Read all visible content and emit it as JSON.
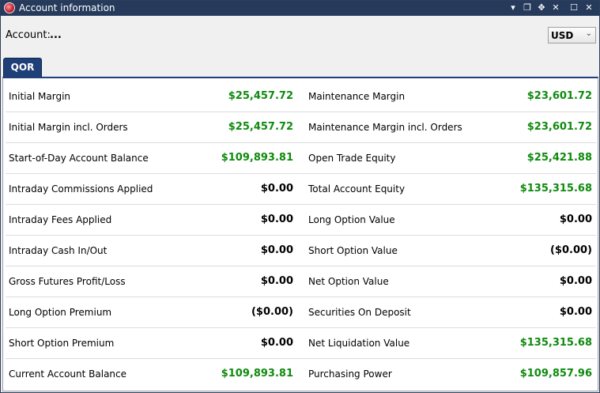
{
  "window": {
    "title": "Account information",
    "controls": [
      "▾",
      "❐",
      "✥",
      "✕",
      "☐",
      "✕"
    ]
  },
  "header": {
    "account_label": "Account:",
    "account_value": "...",
    "currency": "USD"
  },
  "tabs": [
    {
      "label": "QOR"
    }
  ],
  "colors": {
    "positive": "#0f8a0f",
    "neutral": "#000000",
    "tab_bg": "#1f3f78",
    "titlebar_bg": "#263a5b"
  },
  "rows": [
    {
      "left_label": "Initial Margin",
      "left_value": "$25,457.72",
      "left_tone": "pos",
      "right_label": "Maintenance Margin",
      "right_value": "$23,601.72",
      "right_tone": "pos"
    },
    {
      "left_label": "Initial Margin incl. Orders",
      "left_value": "$25,457.72",
      "left_tone": "pos",
      "right_label": "Maintenance Margin incl. Orders",
      "right_value": "$23,601.72",
      "right_tone": "pos"
    },
    {
      "left_label": "Start-of-Day Account Balance",
      "left_value": "$109,893.81",
      "left_tone": "pos",
      "right_label": "Open Trade Equity",
      "right_value": "$25,421.88",
      "right_tone": "pos"
    },
    {
      "left_label": "Intraday Commissions Applied",
      "left_value": "$0.00",
      "left_tone": "neutral",
      "right_label": "Total Account Equity",
      "right_value": "$135,315.68",
      "right_tone": "pos"
    },
    {
      "left_label": "Intraday Fees Applied",
      "left_value": "$0.00",
      "left_tone": "neutral",
      "right_label": "Long Option Value",
      "right_value": "$0.00",
      "right_tone": "neutral"
    },
    {
      "left_label": "Intraday Cash In/Out",
      "left_value": "$0.00",
      "left_tone": "neutral",
      "right_label": "Short Option Value",
      "right_value": "($0.00)",
      "right_tone": "neutral"
    },
    {
      "left_label": "Gross Futures Profit/Loss",
      "left_value": "$0.00",
      "left_tone": "neutral",
      "right_label": "Net Option Value",
      "right_value": "$0.00",
      "right_tone": "neutral"
    },
    {
      "left_label": "Long Option Premium",
      "left_value": "($0.00)",
      "left_tone": "neutral",
      "right_label": "Securities On Deposit",
      "right_value": "$0.00",
      "right_tone": "neutral"
    },
    {
      "left_label": "Short Option Premium",
      "left_value": "$0.00",
      "left_tone": "neutral",
      "right_label": "Net Liquidation Value",
      "right_value": "$135,315.68",
      "right_tone": "pos"
    },
    {
      "left_label": "Current Account Balance",
      "left_value": "$109,893.81",
      "left_tone": "pos",
      "right_label": "Purchasing Power",
      "right_value": "$109,857.96",
      "right_tone": "pos"
    }
  ]
}
